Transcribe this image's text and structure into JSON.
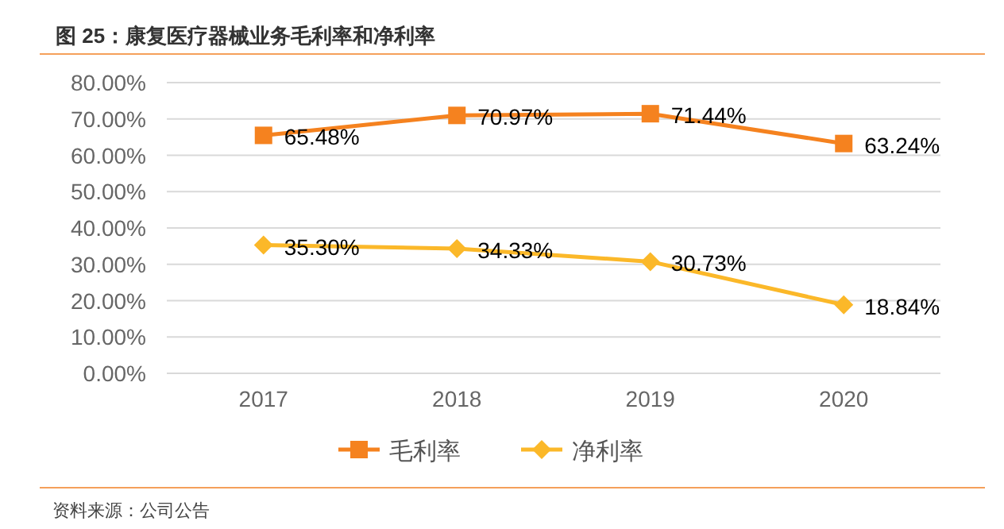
{
  "chart_data": {
    "type": "line",
    "title": "图 25：康复医疗器械业务毛利率和净利率",
    "categories": [
      "2017",
      "2018",
      "2019",
      "2020"
    ],
    "series": [
      {
        "name": "毛利率",
        "color": "#f5821f",
        "marker": "square",
        "values": [
          65.48,
          70.97,
          71.44,
          63.24
        ],
        "value_labels": [
          "65.48%",
          "70.97%",
          "71.44%",
          "63.24%"
        ]
      },
      {
        "name": "净利率",
        "color": "#fbb829",
        "marker": "diamond",
        "values": [
          35.3,
          34.33,
          30.73,
          18.84
        ],
        "value_labels": [
          "35.30%",
          "34.33%",
          "30.73%",
          "18.84%"
        ]
      }
    ],
    "ylim": [
      0,
      80
    ],
    "yticks": [
      {
        "value": 0,
        "label": "0.00%"
      },
      {
        "value": 10,
        "label": "10.00%"
      },
      {
        "value": 20,
        "label": "20.00%"
      },
      {
        "value": 30,
        "label": "30.00%"
      },
      {
        "value": 40,
        "label": "40.00%"
      },
      {
        "value": 50,
        "label": "50.00%"
      },
      {
        "value": 60,
        "label": "60.00%"
      },
      {
        "value": 70,
        "label": "70.00%"
      },
      {
        "value": 80,
        "label": "80.00%"
      }
    ],
    "grid": "y",
    "legend": "bottom",
    "annotations": [
      "资料来源：公司公告"
    ]
  }
}
